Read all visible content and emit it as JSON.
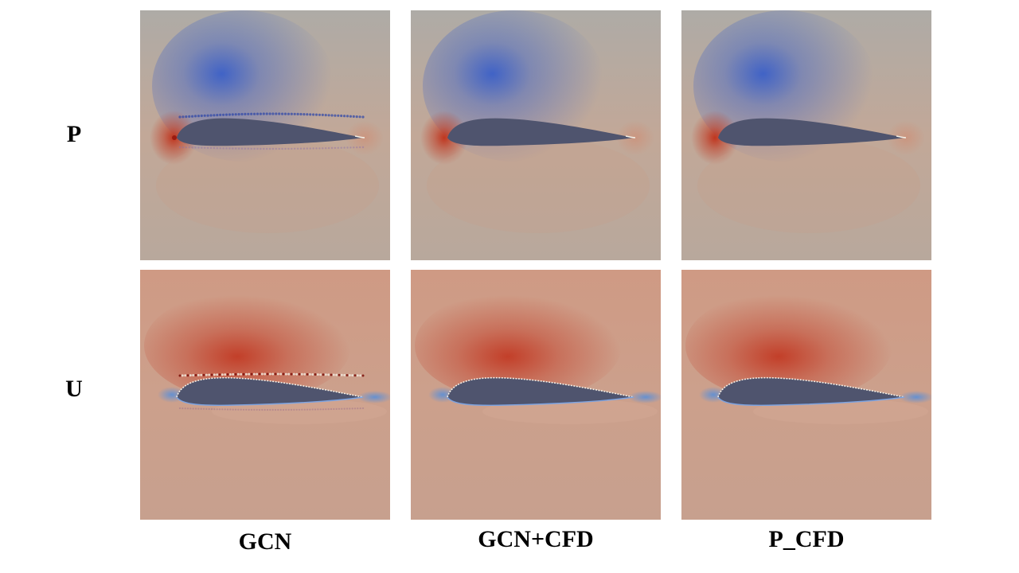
{
  "rows": [
    {
      "label": "P",
      "field": "pressure"
    },
    {
      "label": "U",
      "field": "velocity"
    }
  ],
  "columns": [
    {
      "label": "GCN",
      "noisy": true
    },
    {
      "label": "GCN+CFD",
      "noisy": false
    },
    {
      "label": "P_CFD",
      "noisy": false
    }
  ],
  "colors": {
    "airfoil": "#4f546e",
    "pressure_background": "#b8a89c",
    "pressure_low": "#3a5fc8",
    "pressure_high": "#c0361f",
    "velocity_background": "#c7a08e",
    "velocity_high": "#c23a24",
    "velocity_low": "#5a8fd8",
    "edge_highlight": "#f3efe6"
  }
}
